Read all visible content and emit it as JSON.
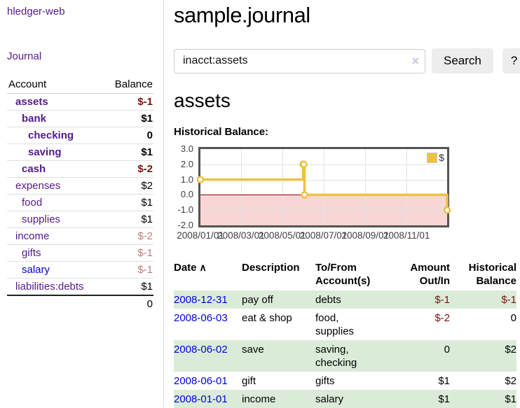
{
  "app": {
    "brand": "hledger-web",
    "nav": {
      "journal": "Journal"
    }
  },
  "colors": {
    "visited_link_purple": "#551a8b",
    "unvisited_link_blue": "#0000dd",
    "negative_strong_red": "#7f0f0f",
    "negative_muted_red": "#b97c7c",
    "row_stripe_green": "#daecd8",
    "series_gold": "#edc240",
    "negative_region_pink": "#f9d6d6",
    "zero_line_dark_red": "#8b0000"
  },
  "sidebar": {
    "accounts": {
      "headers": {
        "account": "Account",
        "balance": "Balance"
      },
      "rows": [
        {
          "name": "assets",
          "balance": "$-1"
        },
        {
          "name": "bank",
          "balance": "$1"
        },
        {
          "name": "checking",
          "balance": "0"
        },
        {
          "name": "saving",
          "balance": "$1"
        },
        {
          "name": "cash",
          "balance": "$-2"
        },
        {
          "name": "expenses",
          "balance": "$2"
        },
        {
          "name": "food",
          "balance": "$1"
        },
        {
          "name": "supplies",
          "balance": "$1"
        },
        {
          "name": "income",
          "balance": "$-2"
        },
        {
          "name": "gifts",
          "balance": "$-1"
        },
        {
          "name": "salary",
          "balance": "$-1"
        },
        {
          "name": "liabilities:debts",
          "balance": "$1"
        }
      ],
      "total": "0"
    }
  },
  "main": {
    "title": "sample.journal",
    "search": {
      "value": "inacct:assets",
      "clear_icon": "×",
      "button_label": "Search",
      "help_label": "?"
    },
    "account_heading": "assets",
    "chart_label": "Historical Balance:",
    "register": {
      "headers": {
        "date": "Date",
        "sort_icon": "∧",
        "description": "Description",
        "accounts": "To/From Account(s)",
        "amount": "Amount Out/In",
        "balance": "Historical Balance"
      },
      "rows": [
        {
          "date": "2008-12-31",
          "description": "pay off",
          "accounts": "debts",
          "amount": "$-1",
          "balance": "$-1"
        },
        {
          "date": "2008-06-03",
          "description": "eat & shop",
          "accounts": "food, supplies",
          "amount": "$-2",
          "balance": "0"
        },
        {
          "date": "2008-06-02",
          "description": "save",
          "accounts": "saving, checking",
          "amount": "0",
          "balance": "$2"
        },
        {
          "date": "2008-06-01",
          "description": "gift",
          "accounts": "gifts",
          "amount": "$1",
          "balance": "$2"
        },
        {
          "date": "2008-01-01",
          "description": "income",
          "accounts": "salary",
          "amount": "$1",
          "balance": "$1"
        }
      ]
    }
  },
  "chart_data": {
    "type": "line",
    "step": true,
    "title": "Historical Balance:",
    "series": [
      {
        "name": "$",
        "color": "#edc240",
        "points": [
          [
            "2008-01-01",
            1.0
          ],
          [
            "2008-06-01",
            2.0
          ],
          [
            "2008-06-02",
            2.0
          ],
          [
            "2008-06-03",
            0.0
          ],
          [
            "2008-12-31",
            -1.0
          ]
        ]
      }
    ],
    "xrange": [
      "2008-01-01",
      "2008-12-31"
    ],
    "ylim": [
      -2.0,
      3.0
    ],
    "yticks": [
      "3.0",
      "2.0",
      "1.0",
      "0.0",
      "-1.0",
      "-2.0"
    ],
    "xticks": [
      "2008/01/01",
      "2008/03/01",
      "2008/05/01",
      "2008/07/01",
      "2008/09/01",
      "2008/11/01"
    ],
    "legend": {
      "label": "$",
      "position": "top-right"
    },
    "grid": true,
    "negative_region_below_zero": true
  }
}
